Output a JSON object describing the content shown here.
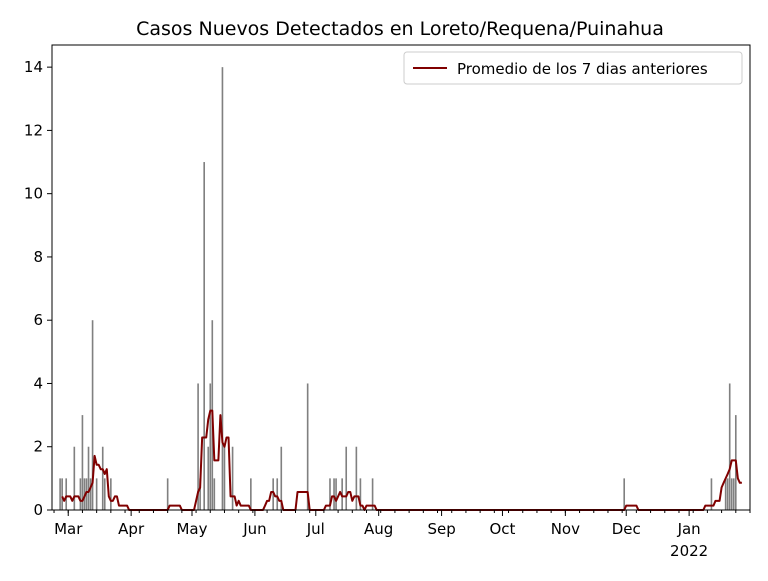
{
  "chart_data": {
    "type": "bar+line",
    "title": "Casos Nuevos Detectados en Loreto/Requena/Puinahua",
    "xlabel": "",
    "ylabel": "",
    "xlim": [
      "2021-02-21",
      "2022-01-31"
    ],
    "ylim": [
      0,
      14.7
    ],
    "yticks": [
      0,
      2,
      4,
      6,
      8,
      10,
      12,
      14
    ],
    "xticks": [
      {
        "date": "2021-03-01",
        "label": "Mar"
      },
      {
        "date": "2021-04-01",
        "label": "Apr"
      },
      {
        "date": "2021-05-01",
        "label": "May"
      },
      {
        "date": "2021-06-01",
        "label": "Jun"
      },
      {
        "date": "2021-07-01",
        "label": "Jul"
      },
      {
        "date": "2021-08-01",
        "label": "Aug"
      },
      {
        "date": "2021-09-01",
        "label": "Sep"
      },
      {
        "date": "2021-10-01",
        "label": "Oct"
      },
      {
        "date": "2021-11-01",
        "label": "Nov"
      },
      {
        "date": "2021-12-01",
        "label": "Dec"
      },
      {
        "date": "2022-01-01",
        "label": "Jan",
        "sublabel": "2022"
      }
    ],
    "grid": false,
    "legend_position": "top-right",
    "bar_color": "#808080",
    "line_color": "#800000",
    "daily_cases": [
      [
        "2021-02-25",
        1
      ],
      [
        "2021-02-26",
        1
      ],
      [
        "2021-02-28",
        1
      ],
      [
        "2021-03-04",
        2
      ],
      [
        "2021-03-07",
        1
      ],
      [
        "2021-03-08",
        3
      ],
      [
        "2021-03-09",
        1
      ],
      [
        "2021-03-10",
        1
      ],
      [
        "2021-03-11",
        2
      ],
      [
        "2021-03-12",
        1
      ],
      [
        "2021-03-13",
        6
      ],
      [
        "2021-03-15",
        1
      ],
      [
        "2021-03-18",
        2
      ],
      [
        "2021-03-19",
        1
      ],
      [
        "2021-03-22",
        1
      ],
      [
        "2021-04-19",
        1
      ],
      [
        "2021-05-04",
        4
      ],
      [
        "2021-05-05",
        1
      ],
      [
        "2021-05-07",
        11
      ],
      [
        "2021-05-09",
        2
      ],
      [
        "2021-05-10",
        4
      ],
      [
        "2021-05-11",
        6
      ],
      [
        "2021-05-12",
        1
      ],
      [
        "2021-05-16",
        14
      ],
      [
        "2021-05-17",
        2
      ],
      [
        "2021-05-21",
        2
      ],
      [
        "2021-05-30",
        1
      ],
      [
        "2021-06-10",
        1
      ],
      [
        "2021-06-12",
        1
      ],
      [
        "2021-06-14",
        2
      ],
      [
        "2021-06-27",
        4
      ],
      [
        "2021-07-08",
        1
      ],
      [
        "2021-07-10",
        1
      ],
      [
        "2021-07-11",
        1
      ],
      [
        "2021-07-14",
        1
      ],
      [
        "2021-07-16",
        2
      ],
      [
        "2021-07-21",
        2
      ],
      [
        "2021-07-23",
        1
      ],
      [
        "2021-07-29",
        1
      ],
      [
        "2021-11-30",
        1
      ],
      [
        "2022-01-12",
        1
      ],
      [
        "2022-01-19",
        1
      ],
      [
        "2022-01-20",
        1
      ],
      [
        "2022-01-21",
        4
      ],
      [
        "2022-01-22",
        1
      ],
      [
        "2022-01-23",
        1
      ],
      [
        "2022-01-24",
        3
      ]
    ],
    "series": [
      {
        "name": "Promedio de los 7 dias anteriores",
        "points": [
          [
            "2021-02-26",
            0.43
          ],
          [
            "2021-02-27",
            0.29
          ],
          [
            "2021-02-28",
            0.43
          ],
          [
            "2021-03-01",
            0.43
          ],
          [
            "2021-03-02",
            0.43
          ],
          [
            "2021-03-03",
            0.29
          ],
          [
            "2021-03-04",
            0.43
          ],
          [
            "2021-03-05",
            0.43
          ],
          [
            "2021-03-06",
            0.43
          ],
          [
            "2021-03-07",
            0.29
          ],
          [
            "2021-03-08",
            0.29
          ],
          [
            "2021-03-09",
            0.43
          ],
          [
            "2021-03-10",
            0.57
          ],
          [
            "2021-03-11",
            0.57
          ],
          [
            "2021-03-12",
            0.71
          ],
          [
            "2021-03-13",
            0.86
          ],
          [
            "2021-03-14",
            1.71
          ],
          [
            "2021-03-15",
            1.43
          ],
          [
            "2021-03-16",
            1.43
          ],
          [
            "2021-03-17",
            1.29
          ],
          [
            "2021-03-18",
            1.29
          ],
          [
            "2021-03-19",
            1.14
          ],
          [
            "2021-03-20",
            1.29
          ],
          [
            "2021-03-21",
            0.43
          ],
          [
            "2021-03-22",
            0.29
          ],
          [
            "2021-03-23",
            0.29
          ],
          [
            "2021-03-24",
            0.43
          ],
          [
            "2021-03-25",
            0.43
          ],
          [
            "2021-03-26",
            0.14
          ],
          [
            "2021-03-30",
            0.14
          ],
          [
            "2021-03-31",
            0
          ],
          [
            "2021-04-19",
            0
          ],
          [
            "2021-04-20",
            0.14
          ],
          [
            "2021-04-25",
            0.14
          ],
          [
            "2021-04-26",
            0
          ],
          [
            "2021-05-02",
            0
          ],
          [
            "2021-05-04",
            0.57
          ],
          [
            "2021-05-05",
            0.71
          ],
          [
            "2021-05-06",
            2.29
          ],
          [
            "2021-05-07",
            2.29
          ],
          [
            "2021-05-08",
            2.29
          ],
          [
            "2021-05-09",
            2.86
          ],
          [
            "2021-05-10",
            3.14
          ],
          [
            "2021-05-11",
            3.14
          ],
          [
            "2021-05-12",
            1.57
          ],
          [
            "2021-05-13",
            1.57
          ],
          [
            "2021-05-14",
            1.57
          ],
          [
            "2021-05-15",
            3.0
          ],
          [
            "2021-05-16",
            2.14
          ],
          [
            "2021-05-17",
            2.0
          ],
          [
            "2021-05-18",
            2.29
          ],
          [
            "2021-05-19",
            2.29
          ],
          [
            "2021-05-20",
            0.43
          ],
          [
            "2021-05-21",
            0.43
          ],
          [
            "2021-05-22",
            0.43
          ],
          [
            "2021-05-23",
            0.14
          ],
          [
            "2021-05-24",
            0.29
          ],
          [
            "2021-05-25",
            0.14
          ],
          [
            "2021-05-29",
            0.14
          ],
          [
            "2021-05-30",
            0
          ],
          [
            "2021-06-05",
            0
          ],
          [
            "2021-06-06",
            0.14
          ],
          [
            "2021-06-07",
            0.29
          ],
          [
            "2021-06-08",
            0.29
          ],
          [
            "2021-06-09",
            0.57
          ],
          [
            "2021-06-10",
            0.57
          ],
          [
            "2021-06-11",
            0.43
          ],
          [
            "2021-06-12",
            0.43
          ],
          [
            "2021-06-13",
            0.29
          ],
          [
            "2021-06-14",
            0.29
          ],
          [
            "2021-06-15",
            0
          ],
          [
            "2021-06-21",
            0
          ],
          [
            "2021-06-22",
            0.57
          ],
          [
            "2021-06-27",
            0.57
          ],
          [
            "2021-06-28",
            0
          ],
          [
            "2021-07-05",
            0
          ],
          [
            "2021-07-06",
            0.14
          ],
          [
            "2021-07-08",
            0.14
          ],
          [
            "2021-07-09",
            0.43
          ],
          [
            "2021-07-10",
            0.43
          ],
          [
            "2021-07-11",
            0.29
          ],
          [
            "2021-07-12",
            0.43
          ],
          [
            "2021-07-13",
            0.57
          ],
          [
            "2021-07-14",
            0.43
          ],
          [
            "2021-07-15",
            0.43
          ],
          [
            "2021-07-16",
            0.43
          ],
          [
            "2021-07-17",
            0.57
          ],
          [
            "2021-07-18",
            0.57
          ],
          [
            "2021-07-19",
            0.29
          ],
          [
            "2021-07-20",
            0.43
          ],
          [
            "2021-07-21",
            0.43
          ],
          [
            "2021-07-22",
            0.43
          ],
          [
            "2021-07-23",
            0.14
          ],
          [
            "2021-07-24",
            0.14
          ],
          [
            "2021-07-25",
            0
          ],
          [
            "2021-07-26",
            0.14
          ],
          [
            "2021-07-30",
            0.14
          ],
          [
            "2021-07-31",
            0
          ],
          [
            "2021-11-30",
            0
          ],
          [
            "2021-12-01",
            0.14
          ],
          [
            "2021-12-06",
            0.14
          ],
          [
            "2021-12-07",
            0
          ],
          [
            "2022-01-08",
            0
          ],
          [
            "2022-01-09",
            0.14
          ],
          [
            "2022-01-13",
            0.14
          ],
          [
            "2022-01-14",
            0.29
          ],
          [
            "2022-01-15",
            0.29
          ],
          [
            "2022-01-16",
            0.29
          ],
          [
            "2022-01-17",
            0.71
          ],
          [
            "2022-01-18",
            0.86
          ],
          [
            "2022-01-19",
            1.0
          ],
          [
            "2022-01-20",
            1.14
          ],
          [
            "2022-01-21",
            1.29
          ],
          [
            "2022-01-22",
            1.57
          ],
          [
            "2022-01-23",
            1.57
          ],
          [
            "2022-01-24",
            1.57
          ],
          [
            "2022-01-25",
            1.0
          ],
          [
            "2022-01-26",
            0.86
          ],
          [
            "2022-01-27",
            0.86
          ]
        ]
      }
    ]
  }
}
